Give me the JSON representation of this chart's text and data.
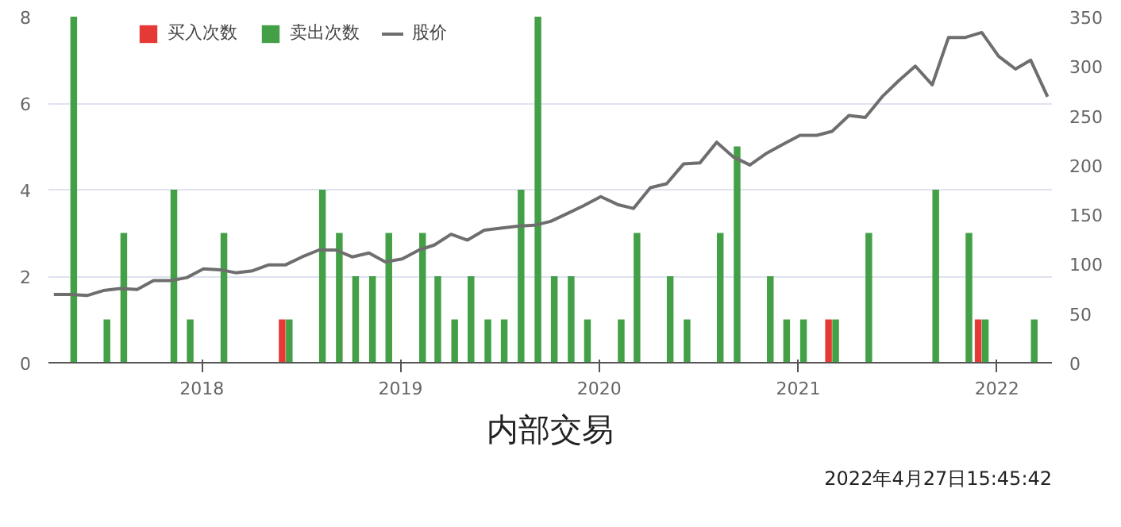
{
  "chart_data": {
    "type": "bar",
    "title": "内部交易",
    "annotations": [
      "2022年4月27日15:45:42"
    ],
    "series": [
      {
        "name": "买入次数",
        "color": "#e53935",
        "x": [
          "2018-06",
          "2021-03",
          "2021-12"
        ],
        "values": [
          1,
          1,
          1
        ]
      },
      {
        "name": "卖出次数",
        "color": "#43a047",
        "x": [
          "2017-05",
          "2017-07",
          "2017-08",
          "2017-11",
          "2017-12",
          "2018-02",
          "2018-06",
          "2018-08",
          "2018-09",
          "2018-10",
          "2018-11",
          "2018-12",
          "2019-02",
          "2019-03",
          "2019-04",
          "2019-05",
          "2019-06",
          "2019-07",
          "2019-08",
          "2019-09",
          "2019-10",
          "2019-11",
          "2019-12",
          "2020-02",
          "2020-03",
          "2020-05",
          "2020-06",
          "2020-08",
          "2020-09",
          "2020-11",
          "2020-12",
          "2021-01",
          "2021-03",
          "2021-05",
          "2021-09",
          "2021-11",
          "2021-12",
          "2022-03"
        ],
        "values": [
          8,
          1,
          3,
          4,
          1,
          3,
          1,
          4,
          3,
          2,
          2,
          3,
          3,
          2,
          1,
          2,
          1,
          1,
          4,
          8,
          2,
          2,
          1,
          1,
          3,
          2,
          1,
          3,
          5,
          2,
          1,
          1,
          1,
          3,
          4,
          3,
          1,
          1
        ]
      },
      {
        "name": "股价",
        "type": "line",
        "axis": "y2",
        "color": "#6e6e6e",
        "x": [
          "2017-04",
          "2017-05",
          "2017-06",
          "2017-07",
          "2017-08",
          "2017-09",
          "2017-10",
          "2017-11",
          "2017-12",
          "2018-01",
          "2018-02",
          "2018-03",
          "2018-04",
          "2018-05",
          "2018-06",
          "2018-07",
          "2018-08",
          "2018-09",
          "2018-10",
          "2018-11",
          "2018-12",
          "2019-01",
          "2019-02",
          "2019-03",
          "2019-04",
          "2019-05",
          "2019-06",
          "2019-07",
          "2019-08",
          "2019-09",
          "2019-10",
          "2019-11",
          "2019-12",
          "2020-01",
          "2020-02",
          "2020-03",
          "2020-04",
          "2020-05",
          "2020-06",
          "2020-07",
          "2020-08",
          "2020-09",
          "2020-10",
          "2020-11",
          "2020-12",
          "2021-01",
          "2021-02",
          "2021-03",
          "2021-04",
          "2021-05",
          "2021-06",
          "2021-07",
          "2021-08",
          "2021-09",
          "2021-10",
          "2021-11",
          "2021-12",
          "2022-01",
          "2022-02",
          "2022-03",
          "2022-04"
        ],
        "values": [
          69,
          69,
          68,
          73,
          75,
          74,
          83,
          83,
          86,
          95,
          94,
          91,
          93,
          99,
          99,
          107,
          114,
          114,
          107,
          111,
          102,
          105,
          114,
          119,
          130,
          124,
          134,
          136,
          138,
          139,
          143,
          151,
          159,
          168,
          160,
          156,
          177,
          181,
          201,
          202,
          223,
          208,
          200,
          212,
          221,
          230,
          230,
          234,
          250,
          248,
          269,
          285,
          300,
          281,
          329,
          329,
          334,
          310,
          297,
          306,
          269
        ]
      }
    ],
    "xlim": [
      "2017-03-25",
      "2022-04-12"
    ],
    "xticks": [
      {
        "value": "2018-01-01",
        "label": "2018"
      },
      {
        "value": "2019-01-01",
        "label": "2019"
      },
      {
        "value": "2020-01-01",
        "label": "2020"
      },
      {
        "value": "2021-01-01",
        "label": "2021"
      },
      {
        "value": "2022-01-01",
        "label": "2022"
      }
    ],
    "ylim": [
      0,
      8
    ],
    "yticks": [
      0,
      2,
      4,
      6,
      8
    ],
    "y2lim": [
      0,
      350
    ],
    "y2ticks": [
      0,
      50,
      100,
      150,
      200,
      250,
      300,
      350
    ],
    "grid": "y",
    "legend": "top left"
  }
}
